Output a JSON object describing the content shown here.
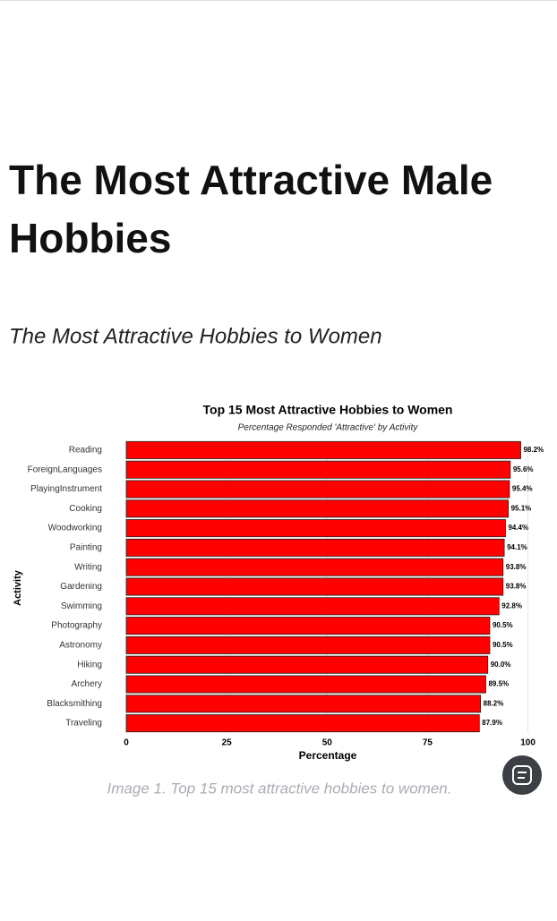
{
  "article": {
    "title_lines": [
      "The Most Attractive Male",
      "Hobbies"
    ],
    "subtitle": "The Most Attractive Hobbies to Women",
    "caption": "Image 1. Top 15 most attractive hobbies to women."
  },
  "chart_data": {
    "type": "barh",
    "title": "Top 15 Most Attractive Hobbies to Women",
    "subtitle": "Percentage Responded 'Attractive' by Activity",
    "x_label": "Percentage",
    "y_label": "Activity",
    "categories": [
      "Reading",
      "ForeignLanguages",
      "PlayingInstrument",
      "Cooking",
      "Woodworking",
      "Painting",
      "Writing",
      "Gardening",
      "Swimming",
      "Photography",
      "Astronomy",
      "Hiking",
      "Archery",
      "Blacksmithing",
      "Traveling"
    ],
    "values": [
      98.2,
      95.6,
      95.4,
      95.1,
      94.4,
      94.1,
      93.8,
      93.8,
      92.8,
      90.5,
      90.5,
      90.0,
      89.5,
      88.2,
      87.9
    ],
    "value_labels": [
      "98.2%",
      "95.6%",
      "95.4%",
      "95.1%",
      "94.4%",
      "94.1%",
      "93.8%",
      "93.8%",
      "92.8%",
      "90.5%",
      "90.5%",
      "90.0%",
      "89.5%",
      "88.2%",
      "87.9%"
    ],
    "color": "#ff0000",
    "xlim": [
      0,
      105
    ],
    "xticks": [
      0,
      25,
      50,
      75,
      100
    ],
    "grid": true
  }
}
